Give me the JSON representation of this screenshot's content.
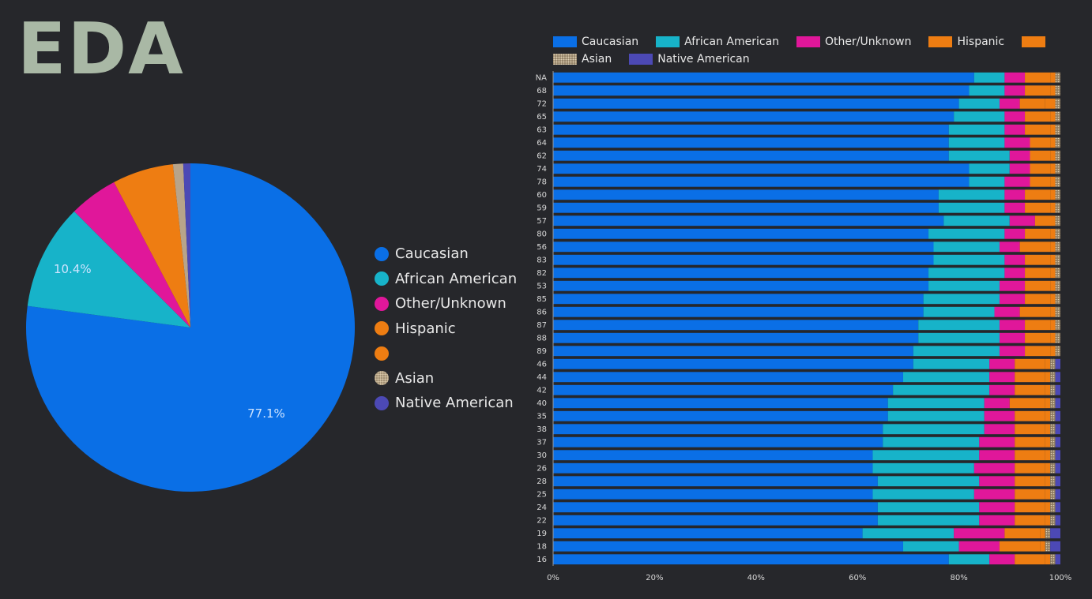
{
  "page": {
    "title": "EDA"
  },
  "colors": {
    "Caucasian": "#0a6fe6",
    "African American": "#17b3c9",
    "Other/Unknown": "#e0179a",
    "Hispanic": "#ee7d12",
    "Blank": "#ee7d12",
    "Asian": "#b8a48a",
    "Native American": "#4c49b5"
  },
  "chart_data": [
    {
      "type": "pie",
      "title": "",
      "slices": [
        {
          "label": "Caucasian",
          "value": 77.1,
          "value_label": "77.1%"
        },
        {
          "label": "African American",
          "value": 10.4,
          "value_label": "10.4%"
        },
        {
          "label": "Other/Unknown",
          "value": 4.8,
          "value_label": ""
        },
        {
          "label": "Hispanic",
          "value": 6.0,
          "value_label": ""
        },
        {
          "label": "",
          "value": 0.0,
          "value_label": ""
        },
        {
          "label": "Asian",
          "value": 1.0,
          "value_label": ""
        },
        {
          "label": "Native American",
          "value": 0.7,
          "value_label": ""
        }
      ],
      "legend": [
        "Caucasian",
        "African American",
        "Other/Unknown",
        "Hispanic",
        "",
        "Asian",
        "Native American"
      ],
      "legend_placement": "right"
    },
    {
      "type": "bar",
      "orientation": "horizontal",
      "stacked": "percent",
      "title": "",
      "xlabel": "",
      "ylabel": "",
      "xlim": [
        0,
        100
      ],
      "x_ticks": [
        "0%",
        "20%",
        "40%",
        "60%",
        "80%",
        "100%"
      ],
      "legend": [
        "Caucasian",
        "African American",
        "Other/Unknown",
        "Hispanic",
        "",
        "Asian",
        "Native American"
      ],
      "legend_placement": "top",
      "categories": [
        "NA",
        "68",
        "72",
        "65",
        "63",
        "64",
        "62",
        "74",
        "78",
        "60",
        "59",
        "57",
        "80",
        "56",
        "83",
        "82",
        "53",
        "85",
        "86",
        "87",
        "88",
        "89",
        "46",
        "44",
        "42",
        "40",
        "35",
        "38",
        "37",
        "30",
        "26",
        "28",
        "25",
        "24",
        "22",
        "19",
        "18",
        "16"
      ],
      "series": [
        {
          "name": "Caucasian",
          "values": [
            83,
            82,
            80,
            79,
            78,
            78,
            78,
            82,
            82,
            76,
            76,
            77,
            74,
            75,
            75,
            74,
            74,
            73,
            73,
            72,
            72,
            71,
            71,
            69,
            67,
            66,
            66,
            65,
            65,
            63,
            63,
            64,
            63,
            64,
            64,
            61,
            69,
            78
          ]
        },
        {
          "name": "African American",
          "values": [
            6,
            7,
            8,
            10,
            11,
            11,
            12,
            8,
            7,
            13,
            13,
            13,
            15,
            13,
            14,
            15,
            14,
            15,
            14,
            16,
            16,
            17,
            15,
            17,
            19,
            19,
            19,
            20,
            19,
            21,
            20,
            20,
            20,
            20,
            20,
            18,
            11,
            8
          ]
        },
        {
          "name": "Other/Unknown",
          "values": [
            4,
            4,
            4,
            4,
            4,
            5,
            4,
            4,
            5,
            4,
            4,
            5,
            4,
            4,
            4,
            4,
            5,
            5,
            5,
            5,
            5,
            5,
            5,
            5,
            5,
            5,
            6,
            6,
            7,
            7,
            8,
            7,
            8,
            7,
            7,
            10,
            8,
            5
          ]
        },
        {
          "name": "Hispanic",
          "values": [
            5,
            5,
            5,
            5,
            5,
            4,
            4,
            4,
            4,
            5,
            5,
            4,
            5,
            6,
            5,
            5,
            5,
            5,
            6,
            5,
            5,
            5,
            6,
            6,
            6,
            7,
            6,
            6,
            6,
            6,
            6,
            6,
            6,
            6,
            6,
            7,
            8,
            6
          ]
        },
        {
          "name": "",
          "values": [
            1,
            1,
            2,
            1,
            1,
            1,
            1,
            1,
            1,
            1,
            1,
            0,
            1,
            1,
            1,
            1,
            1,
            1,
            1,
            1,
            1,
            1,
            1,
            1,
            1,
            1,
            1,
            1,
            1,
            1,
            1,
            1,
            1,
            1,
            1,
            1,
            1,
            1
          ]
        },
        {
          "name": "Asian",
          "values": [
            1,
            1,
            1,
            1,
            1,
            1,
            1,
            1,
            1,
            1,
            1,
            1,
            1,
            1,
            1,
            1,
            1,
            1,
            1,
            1,
            1,
            1,
            1,
            1,
            1,
            1,
            1,
            1,
            1,
            1,
            1,
            1,
            1,
            1,
            1,
            1,
            1,
            1
          ]
        },
        {
          "name": "Native American",
          "values": [
            0,
            0,
            0,
            0,
            0,
            0,
            0,
            0,
            0,
            0,
            0,
            0,
            0,
            0,
            0,
            0,
            0,
            0,
            0,
            0,
            0,
            0,
            1,
            1,
            1,
            1,
            1,
            1,
            1,
            1,
            1,
            1,
            1,
            1,
            1,
            2,
            2,
            1
          ]
        }
      ]
    }
  ]
}
